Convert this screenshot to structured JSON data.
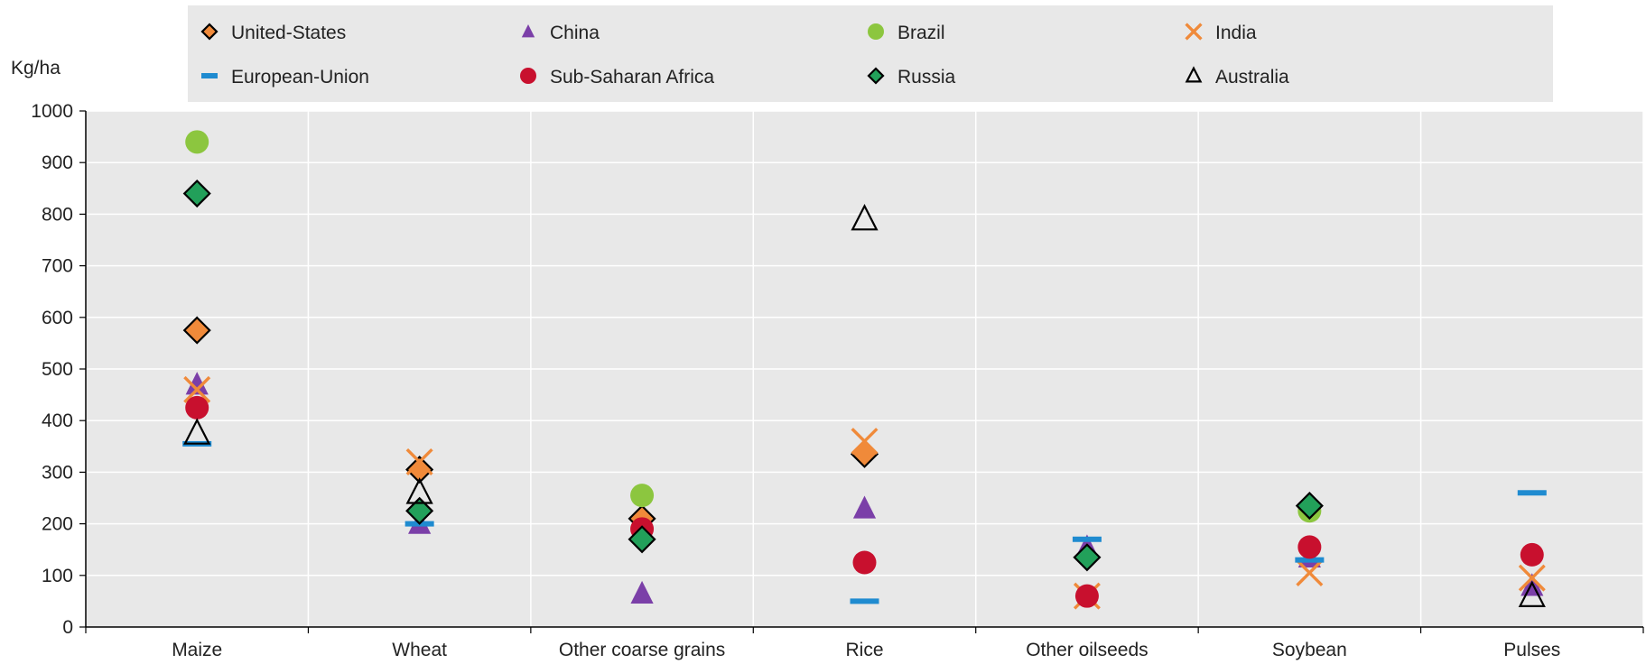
{
  "chart_data": {
    "type": "scatter",
    "ylabel": "Kg/ha",
    "ylim": [
      0,
      1000
    ],
    "yticks": [
      0,
      100,
      200,
      300,
      400,
      500,
      600,
      700,
      800,
      900,
      1000
    ],
    "grid": true,
    "legend_placement": "top",
    "categories": [
      "Maize",
      "Wheat",
      "Other coarse grains",
      "Rice",
      "Other oilseeds",
      "Soybean",
      "Pulses"
    ],
    "series": [
      {
        "name": "United-States",
        "marker": "diamond",
        "color": "#f08a3a",
        "values": [
          575,
          305,
          210,
          335,
          null,
          null,
          null
        ]
      },
      {
        "name": "China",
        "marker": "triangle",
        "color": "#7b3fa8",
        "values": [
          470,
          200,
          65,
          230,
          155,
          135,
          80
        ]
      },
      {
        "name": "Brazil",
        "marker": "circle",
        "color": "#8cc63f",
        "values": [
          940,
          null,
          255,
          null,
          null,
          225,
          null
        ]
      },
      {
        "name": "India",
        "marker": "cross",
        "color": "#f08a3a",
        "values": [
          460,
          320,
          null,
          360,
          60,
          105,
          95
        ]
      },
      {
        "name": "European-Union",
        "marker": "dash",
        "color": "#1f8bd0",
        "values": [
          355,
          200,
          null,
          50,
          170,
          130,
          260
        ]
      },
      {
        "name": "Sub-Saharan Africa",
        "marker": "circle",
        "color": "#c8102e",
        "values": [
          425,
          null,
          190,
          125,
          60,
          155,
          140
        ]
      },
      {
        "name": "Russia",
        "marker": "diamond",
        "color": "#22a05a",
        "values": [
          840,
          225,
          170,
          null,
          135,
          235,
          null
        ]
      },
      {
        "name": "Australia",
        "marker": "open-triangle",
        "color": "#000000",
        "values": [
          375,
          260,
          null,
          790,
          null,
          null,
          60
        ]
      }
    ]
  }
}
